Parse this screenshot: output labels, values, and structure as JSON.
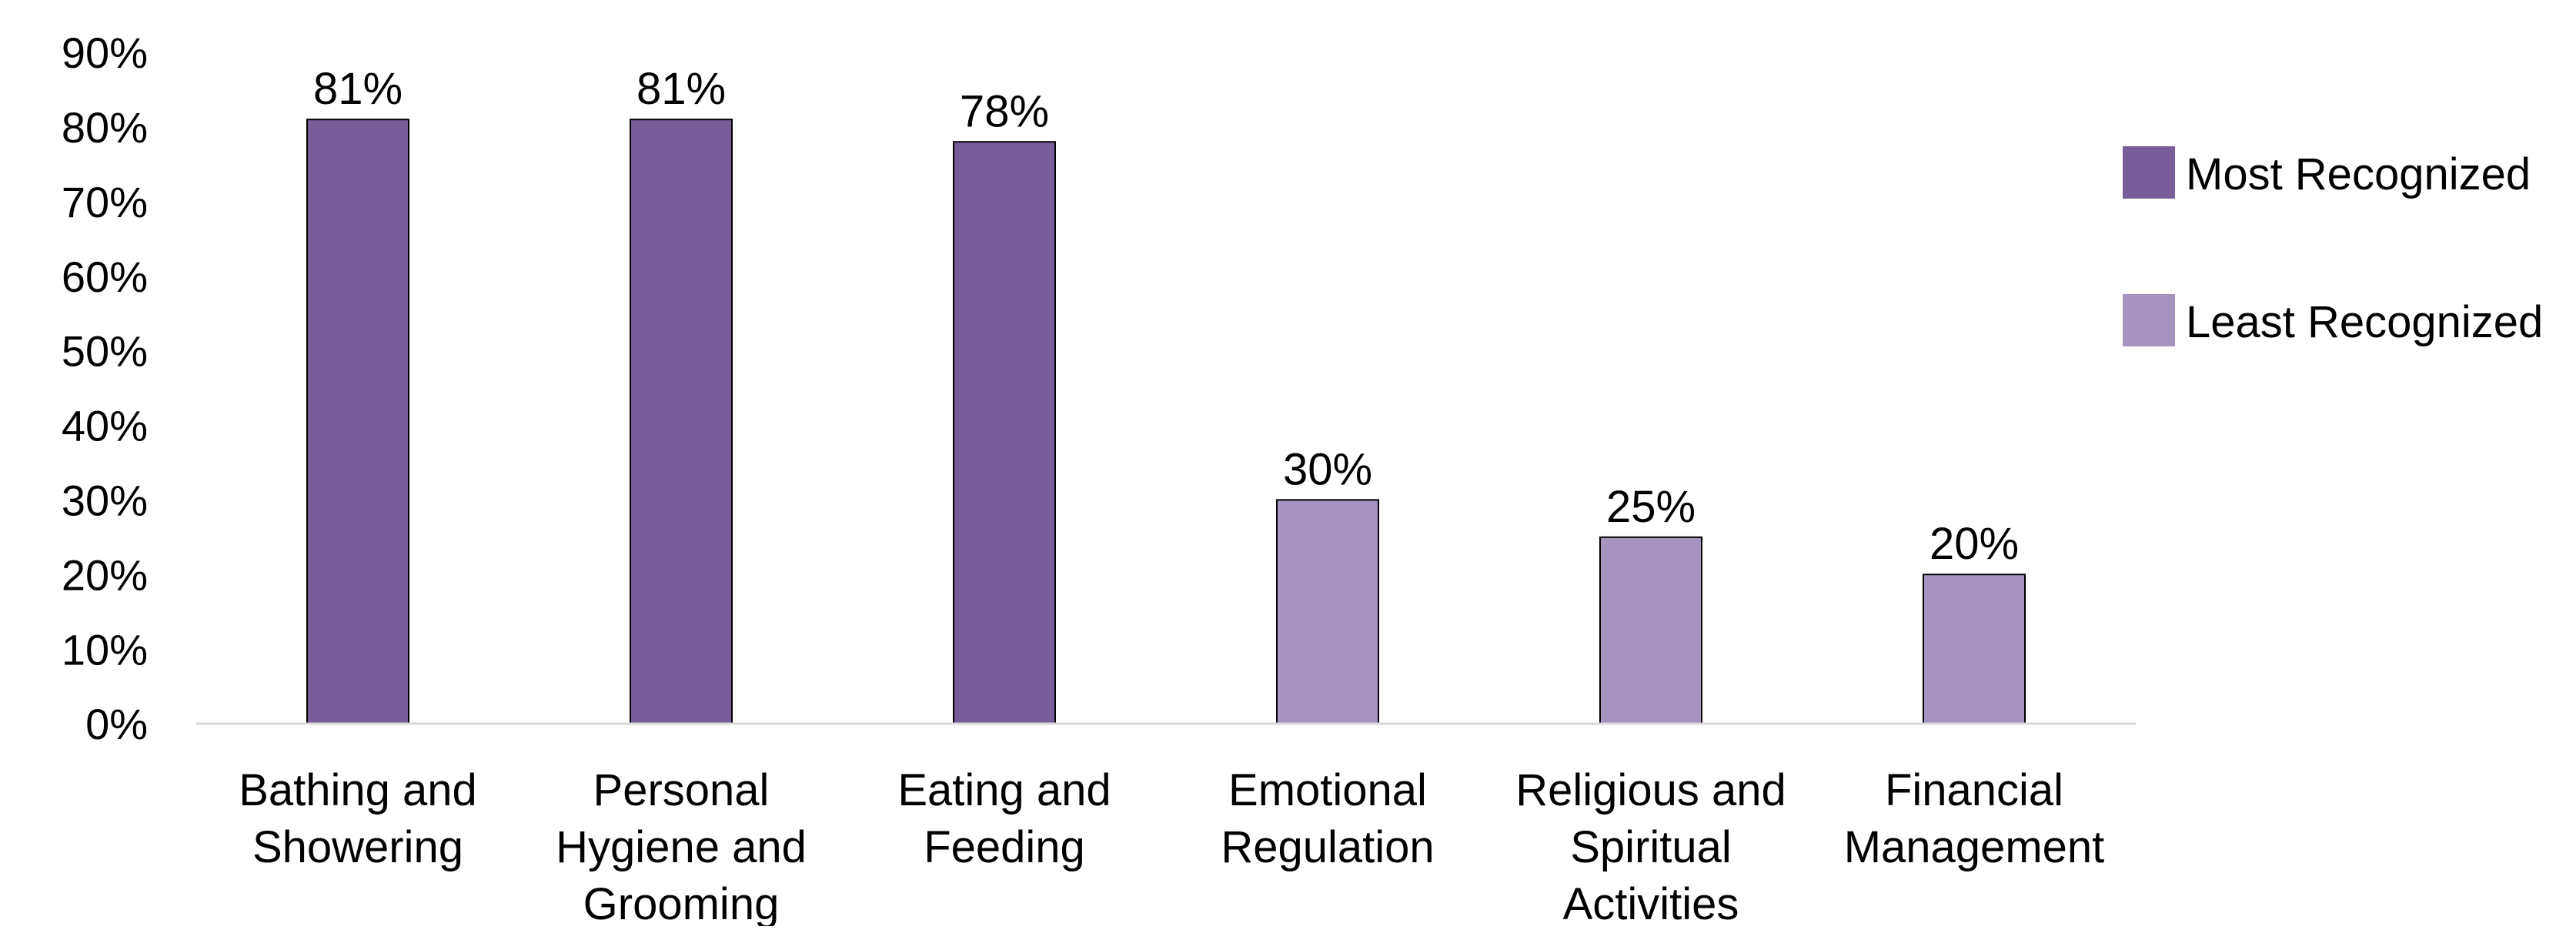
{
  "chart_data": {
    "type": "bar",
    "categories": [
      "Bathing and Showering",
      "Personal Hygiene and Grooming",
      "Eating and Feeding",
      "Emotional Regulation",
      "Religious and Spiritual Activities",
      "Financial Management"
    ],
    "category_lines": [
      [
        "Bathing and",
        "Showering"
      ],
      [
        "Personal",
        "Hygiene and",
        "Grooming"
      ],
      [
        "Eating and",
        "Feeding"
      ],
      [
        "Emotional",
        "Regulation"
      ],
      [
        "Religious and",
        "Spiritual",
        "Activities"
      ],
      [
        "Financial",
        "Management"
      ]
    ],
    "values": [
      81,
      81,
      78,
      30,
      25,
      20
    ],
    "data_labels": [
      "81%",
      "81%",
      "78%",
      "30%",
      "25%",
      "20%"
    ],
    "groups": [
      "Most Recognized",
      "Most Recognized",
      "Most Recognized",
      "Least Recognized",
      "Least Recognized",
      "Least Recognized"
    ],
    "ylim": [
      0,
      90
    ],
    "yticks": [
      "0%",
      "10%",
      "20%",
      "30%",
      "40%",
      "50%",
      "60%",
      "70%",
      "80%",
      "90%"
    ],
    "grid": false,
    "legend": {
      "placement": "right",
      "entries": [
        {
          "label": "Most Recognized",
          "color": "#785E98"
        },
        {
          "label": "Least Recognized",
          "color": "#A594C0"
        }
      ]
    },
    "colors": {
      "Most Recognized": "#785E98",
      "Least Recognized": "#A594C0",
      "bar_outline": "#000000",
      "axis": "#D9D9D9"
    }
  }
}
